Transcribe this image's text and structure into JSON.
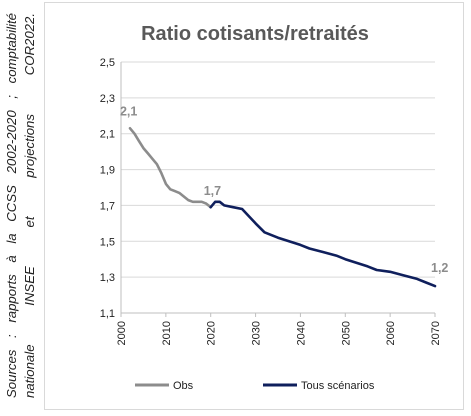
{
  "source_note": {
    "line1": "Sources : rapports à la CCSS 2002-2020 ; comptabilité",
    "line2": "nationale INSEE et projections COR2022."
  },
  "chart_data": {
    "type": "line",
    "title": "Ratio cotisants/retraités",
    "xlabel": "",
    "ylabel": "",
    "xlim": [
      2000,
      2070
    ],
    "ylim": [
      1.1,
      2.5
    ],
    "x_ticks": [
      "2000",
      "2010",
      "2020",
      "2030",
      "2040",
      "2050",
      "2060",
      "2070"
    ],
    "y_ticks": [
      "2,5",
      "2,3",
      "2,1",
      "1,9",
      "1,7",
      "1,5",
      "1,3",
      "1,1"
    ],
    "grid": "horizontal",
    "legend": "bottom",
    "series": [
      {
        "name": "Obs",
        "color": "#8c8c8c",
        "points": [
          [
            2002,
            2.13
          ],
          [
            2003,
            2.1
          ],
          [
            2004,
            2.06
          ],
          [
            2005,
            2.02
          ],
          [
            2006,
            1.99
          ],
          [
            2007,
            1.96
          ],
          [
            2008,
            1.93
          ],
          [
            2009,
            1.88
          ],
          [
            2010,
            1.82
          ],
          [
            2011,
            1.79
          ],
          [
            2012,
            1.78
          ],
          [
            2013,
            1.77
          ],
          [
            2014,
            1.75
          ],
          [
            2015,
            1.73
          ],
          [
            2016,
            1.72
          ],
          [
            2017,
            1.72
          ],
          [
            2018,
            1.72
          ],
          [
            2019,
            1.71
          ],
          [
            2020,
            1.69
          ]
        ]
      },
      {
        "name": "Tous scénarios",
        "color": "#0f1f5c",
        "points": [
          [
            2020,
            1.69
          ],
          [
            2021,
            1.72
          ],
          [
            2022,
            1.72
          ],
          [
            2023,
            1.7
          ],
          [
            2025,
            1.69
          ],
          [
            2027,
            1.68
          ],
          [
            2030,
            1.6
          ],
          [
            2032,
            1.55
          ],
          [
            2035,
            1.52
          ],
          [
            2040,
            1.48
          ],
          [
            2042,
            1.46
          ],
          [
            2045,
            1.44
          ],
          [
            2048,
            1.42
          ],
          [
            2050,
            1.4
          ],
          [
            2055,
            1.36
          ],
          [
            2057,
            1.34
          ],
          [
            2060,
            1.33
          ],
          [
            2063,
            1.31
          ],
          [
            2066,
            1.29
          ],
          [
            2068,
            1.27
          ],
          [
            2070,
            1.25
          ]
        ]
      }
    ],
    "data_labels": [
      {
        "text": "2,1",
        "x": 2002,
        "y": 2.13,
        "series": "Obs"
      },
      {
        "text": "1,7",
        "x": 2020,
        "y": 1.69,
        "series": "Obs"
      },
      {
        "text": "1,2",
        "x": 2070,
        "y": 1.25,
        "series": "Tous scénarios"
      }
    ]
  }
}
